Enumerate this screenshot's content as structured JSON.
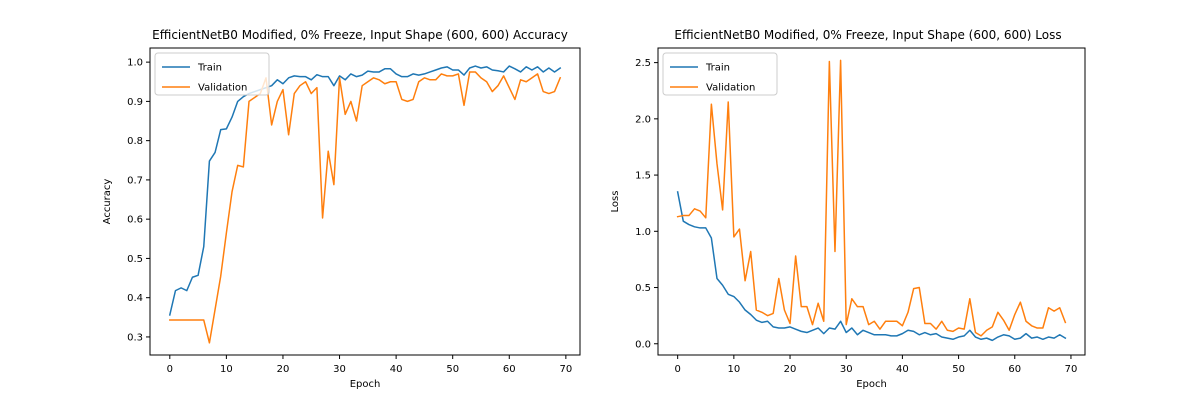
{
  "chart_data": [
    {
      "type": "line",
      "title": "EfficientNetB0 Modified, 0% Freeze, Input Shape (600, 600) Accuracy",
      "xlabel": "Epoch",
      "ylabel": "Accuracy",
      "xlim": [
        -3.5,
        72.5
      ],
      "ylim": [
        0.254,
        1.036
      ],
      "xticks": [
        0,
        10,
        20,
        30,
        40,
        50,
        60,
        70
      ],
      "yticks": [
        0.3,
        0.4,
        0.5,
        0.6,
        0.7,
        0.8,
        0.9,
        1.0
      ],
      "ytick_labels": [
        "0.3",
        "0.4",
        "0.5",
        "0.6",
        "0.7",
        "0.8",
        "0.9",
        "1.0"
      ],
      "legend": "upper left",
      "x": [
        0,
        1,
        2,
        3,
        4,
        5,
        6,
        7,
        8,
        9,
        10,
        11,
        12,
        13,
        14,
        15,
        16,
        17,
        18,
        19,
        20,
        21,
        22,
        23,
        24,
        25,
        26,
        27,
        28,
        29,
        30,
        31,
        32,
        33,
        34,
        35,
        36,
        37,
        38,
        39,
        40,
        41,
        42,
        43,
        44,
        45,
        46,
        47,
        48,
        49,
        50,
        51,
        52,
        53,
        54,
        55,
        56,
        57,
        58,
        59,
        60,
        61,
        62,
        63,
        64,
        65,
        66,
        67,
        68,
        69
      ],
      "series": [
        {
          "name": "Train",
          "color": "#1f77b4",
          "values": [
            0.356,
            0.418,
            0.425,
            0.418,
            0.452,
            0.457,
            0.53,
            0.748,
            0.77,
            0.828,
            0.83,
            0.86,
            0.9,
            0.912,
            0.92,
            0.925,
            0.93,
            0.935,
            0.94,
            0.955,
            0.945,
            0.96,
            0.965,
            0.963,
            0.963,
            0.955,
            0.968,
            0.963,
            0.963,
            0.94,
            0.965,
            0.955,
            0.97,
            0.963,
            0.967,
            0.977,
            0.975,
            0.975,
            0.983,
            0.983,
            0.97,
            0.963,
            0.963,
            0.97,
            0.967,
            0.97,
            0.975,
            0.98,
            0.985,
            0.988,
            0.98,
            0.98,
            0.967,
            0.985,
            0.99,
            0.985,
            0.988,
            0.98,
            0.978,
            0.975,
            0.99,
            0.983,
            0.975,
            0.988,
            0.98,
            0.988,
            0.975,
            0.985,
            0.975,
            0.985
          ]
        },
        {
          "name": "Validation",
          "color": "#ff7f0e",
          "values": [
            0.343,
            0.343,
            0.343,
            0.343,
            0.343,
            0.343,
            0.343,
            0.285,
            0.37,
            0.455,
            0.565,
            0.67,
            0.737,
            0.733,
            0.9,
            0.91,
            0.92,
            0.96,
            0.84,
            0.9,
            0.93,
            0.815,
            0.92,
            0.94,
            0.95,
            0.92,
            0.935,
            0.603,
            0.773,
            0.688,
            0.96,
            0.867,
            0.9,
            0.85,
            0.94,
            0.95,
            0.96,
            0.955,
            0.945,
            0.95,
            0.95,
            0.905,
            0.9,
            0.905,
            0.95,
            0.96,
            0.955,
            0.955,
            0.97,
            0.965,
            0.965,
            0.97,
            0.89,
            0.975,
            0.975,
            0.96,
            0.95,
            0.925,
            0.94,
            0.965,
            0.935,
            0.905,
            0.955,
            0.95,
            0.96,
            0.97,
            0.925,
            0.92,
            0.925,
            0.96
          ]
        }
      ]
    },
    {
      "type": "line",
      "title": "EfficientNetB0 Modified, 0% Freeze, Input Shape (600, 600) Loss",
      "xlabel": "Epoch",
      "ylabel": "Loss",
      "xlim": [
        -3.5,
        72.5
      ],
      "ylim": [
        -0.1,
        2.63
      ],
      "xticks": [
        0,
        10,
        20,
        30,
        40,
        50,
        60,
        70
      ],
      "yticks": [
        0.0,
        0.5,
        1.0,
        1.5,
        2.0,
        2.5
      ],
      "ytick_labels": [
        "0.0",
        "0.5",
        "1.0",
        "1.5",
        "2.0",
        "2.5"
      ],
      "legend": "upper left",
      "x": [
        0,
        1,
        2,
        3,
        4,
        5,
        6,
        7,
        8,
        9,
        10,
        11,
        12,
        13,
        14,
        15,
        16,
        17,
        18,
        19,
        20,
        21,
        22,
        23,
        24,
        25,
        26,
        27,
        28,
        29,
        30,
        31,
        32,
        33,
        34,
        35,
        36,
        37,
        38,
        39,
        40,
        41,
        42,
        43,
        44,
        45,
        46,
        47,
        48,
        49,
        50,
        51,
        52,
        53,
        54,
        55,
        56,
        57,
        58,
        59,
        60,
        61,
        62,
        63,
        64,
        65,
        66,
        67,
        68,
        69
      ],
      "series": [
        {
          "name": "Train",
          "color": "#1f77b4",
          "values": [
            1.35,
            1.09,
            1.06,
            1.04,
            1.03,
            1.03,
            0.94,
            0.58,
            0.52,
            0.44,
            0.42,
            0.37,
            0.3,
            0.26,
            0.21,
            0.19,
            0.2,
            0.15,
            0.14,
            0.14,
            0.15,
            0.13,
            0.11,
            0.1,
            0.12,
            0.14,
            0.09,
            0.14,
            0.13,
            0.2,
            0.1,
            0.14,
            0.08,
            0.12,
            0.1,
            0.08,
            0.08,
            0.08,
            0.07,
            0.07,
            0.09,
            0.12,
            0.11,
            0.08,
            0.1,
            0.08,
            0.09,
            0.06,
            0.05,
            0.04,
            0.06,
            0.07,
            0.12,
            0.06,
            0.04,
            0.05,
            0.03,
            0.06,
            0.08,
            0.07,
            0.04,
            0.05,
            0.09,
            0.05,
            0.06,
            0.04,
            0.06,
            0.05,
            0.08,
            0.05
          ]
        },
        {
          "name": "Validation",
          "color": "#ff7f0e",
          "values": [
            1.13,
            1.14,
            1.14,
            1.2,
            1.18,
            1.12,
            2.13,
            1.6,
            1.19,
            2.15,
            0.95,
            1.02,
            0.56,
            0.82,
            0.3,
            0.28,
            0.25,
            0.27,
            0.58,
            0.3,
            0.18,
            0.78,
            0.33,
            0.33,
            0.17,
            0.36,
            0.2,
            2.51,
            0.82,
            2.52,
            0.17,
            0.4,
            0.33,
            0.33,
            0.17,
            0.2,
            0.13,
            0.2,
            0.2,
            0.2,
            0.16,
            0.28,
            0.49,
            0.5,
            0.18,
            0.18,
            0.13,
            0.2,
            0.12,
            0.11,
            0.14,
            0.13,
            0.4,
            0.1,
            0.07,
            0.12,
            0.15,
            0.28,
            0.21,
            0.12,
            0.26,
            0.37,
            0.2,
            0.16,
            0.14,
            0.14,
            0.32,
            0.29,
            0.32,
            0.19
          ]
        }
      ]
    }
  ]
}
